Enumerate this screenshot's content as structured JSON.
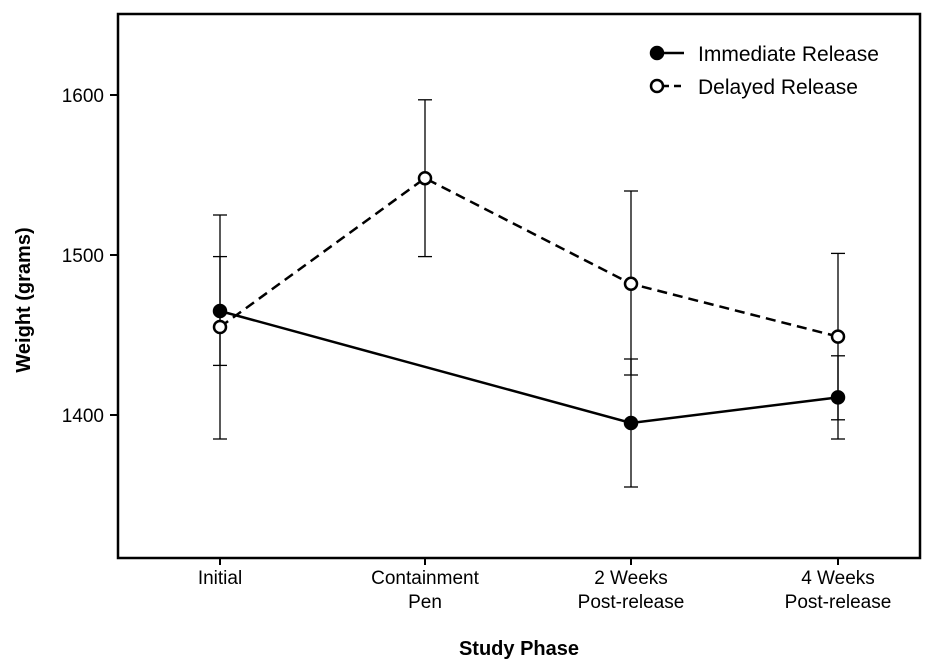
{
  "chart_data": {
    "type": "line",
    "title": "",
    "xlabel": "Study Phase",
    "ylabel": "Weight (grams)",
    "ylim": [
      1330,
      1650
    ],
    "yticks": [
      1400,
      1500,
      1600
    ],
    "categories": [
      [
        "Initial"
      ],
      [
        "Containment",
        "Pen"
      ],
      [
        "2 Weeks",
        "Post-release"
      ],
      [
        "4 Weeks",
        "Post-release"
      ]
    ],
    "legend_position": "top-right",
    "grid": false,
    "series": [
      {
        "name": "Immediate Release",
        "style": "solid",
        "marker": "filled-circle",
        "x": [
          0,
          2,
          3
        ],
        "values": [
          1465,
          1395,
          1411
        ],
        "error_low": [
          1431,
          1355,
          1385
        ],
        "error_high": [
          1499,
          1435,
          1437
        ],
        "color": "#000000"
      },
      {
        "name": "Delayed Release",
        "style": "dashed",
        "marker": "open-circle",
        "x": [
          0,
          1,
          2,
          3
        ],
        "values": [
          1455,
          1548,
          1482,
          1449
        ],
        "error_low": [
          1385,
          1499,
          1425,
          1397
        ],
        "error_high": [
          1525,
          1597,
          1540,
          1501
        ],
        "color": "#000000"
      }
    ]
  }
}
